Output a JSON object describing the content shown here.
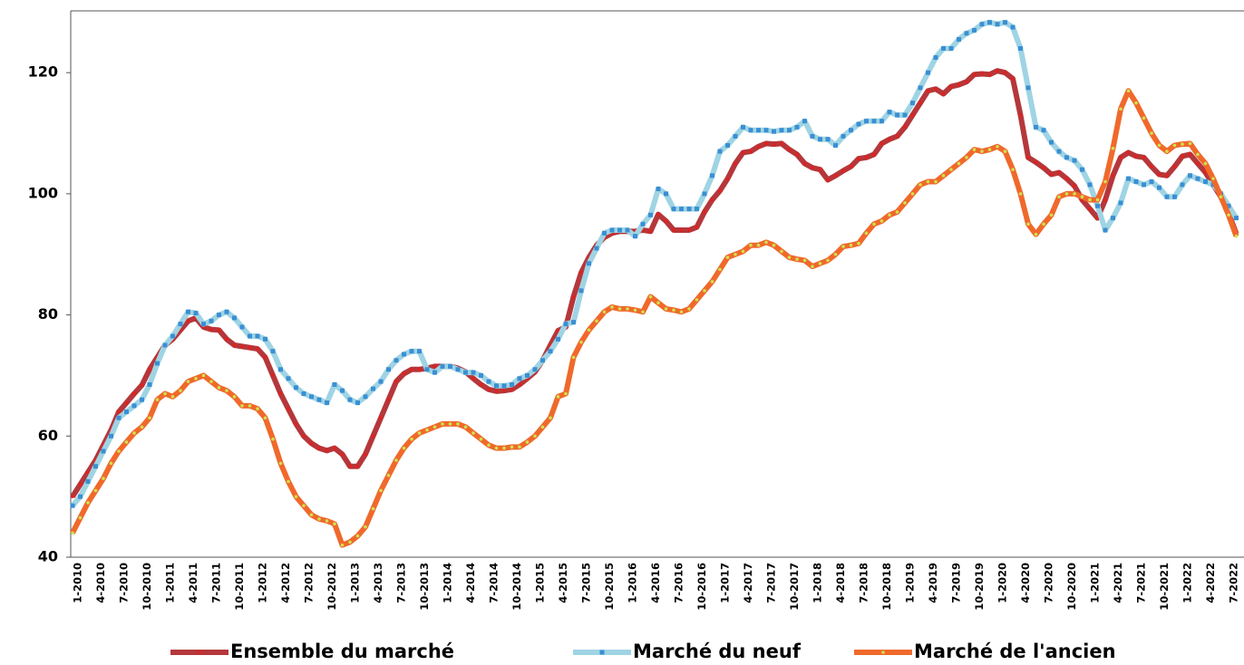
{
  "chart_data": {
    "type": "line",
    "categories": [
      "1-2010",
      null,
      null,
      "4-2010",
      null,
      null,
      "7-2010",
      null,
      null,
      "10-2010",
      null,
      null,
      "1-2011",
      null,
      null,
      "4-2011",
      null,
      null,
      "7-2011",
      null,
      null,
      "10-2011",
      null,
      null,
      "1-2012",
      null,
      null,
      "4-2012",
      null,
      null,
      "7-2012",
      null,
      null,
      "10-2012",
      null,
      null,
      "1-2013",
      null,
      null,
      "4-2013",
      null,
      null,
      "7-2013",
      null,
      null,
      "10-2013",
      null,
      null,
      "1-2014",
      null,
      null,
      "4-2014",
      null,
      null,
      "7-2014",
      null,
      null,
      "10-2014",
      null,
      null,
      "1-2015",
      null,
      null,
      "4-2015",
      null,
      null,
      "7-2015",
      null,
      null,
      "10-2015",
      null,
      null,
      "1-2016",
      null,
      null,
      "4-2016",
      null,
      null,
      "7-2016",
      null,
      null,
      "10-2016",
      null,
      null,
      "1-2017",
      null,
      null,
      "4-2017",
      null,
      null,
      "7-2017",
      null,
      null,
      "10-2017",
      null,
      null,
      "1-2018",
      null,
      null,
      "4-2018",
      null,
      null,
      "7-2018",
      null,
      null,
      "10-2018",
      null,
      null,
      "1-2019",
      null,
      null,
      "4-2019",
      null,
      null,
      "7-2019",
      null,
      null,
      "10-2019",
      null,
      null,
      "1-2020",
      null,
      null,
      "4-2020",
      null,
      null,
      "7-2020",
      null,
      null,
      "10-2020",
      null,
      null,
      "1-2021",
      null,
      null,
      "4-2021",
      null,
      null,
      "7-2021",
      null,
      null,
      "10-2021",
      null,
      null,
      "1-2022",
      null,
      null,
      "4-2022",
      null,
      null,
      "7-2022",
      null
    ],
    "series": [
      {
        "name": "Ensemble du marché",
        "color": "#b5373b",
        "marker_color": "#e3201c",
        "marker": "circle",
        "values": [
          50,
          52,
          54,
          56,
          58.5,
          61,
          64,
          65.5,
          67,
          68.4,
          71,
          73,
          75,
          76,
          77.5,
          79,
          79.5,
          78,
          77.6,
          77.5,
          76,
          75,
          74.8,
          74.6,
          74.4,
          73,
          70,
          67,
          64.5,
          62,
          60,
          58.8,
          58,
          57.6,
          58,
          57,
          55,
          55,
          57,
          60,
          63,
          66,
          69,
          70.3,
          71,
          71,
          71.2,
          71.5,
          71.5,
          71.5,
          71.2,
          70.6,
          69.5,
          68.5,
          67.7,
          67.4,
          67.5,
          67.7,
          68.5,
          69.5,
          70.6,
          72.5,
          75,
          77.4,
          78,
          83,
          87,
          89.5,
          91.5,
          92.8,
          93.5,
          93.8,
          93.8,
          93.8,
          94,
          93.8,
          96.6,
          95.5,
          94,
          94,
          94,
          94.5,
          97,
          99,
          100.5,
          102.5,
          105,
          106.8,
          107,
          107.8,
          108.3,
          108.2,
          108.3,
          107.3,
          106.5,
          105,
          104.3,
          104,
          102.3,
          103,
          103.8,
          104.5,
          105.8,
          106,
          106.5,
          108.3,
          109,
          109.5,
          111,
          113,
          115,
          117,
          117.3,
          116.5,
          117.7,
          118,
          118.5,
          119.7,
          119.8,
          119.7,
          120.3,
          120,
          119,
          113,
          106,
          105.2,
          104.3,
          103.2,
          103.5,
          102.5,
          101.3,
          99,
          97.5,
          96,
          99,
          103,
          106,
          106.8,
          106.2,
          106,
          104.5,
          103.2,
          103,
          104.5,
          106.2,
          106.5,
          105,
          103.5,
          101.5,
          99.5,
          96.8,
          93.4
        ]
      },
      {
        "name": "Marché du neuf",
        "color": "#9fd4e4",
        "marker_color": "#3a8fd3",
        "marker": "square",
        "values": [
          48.5,
          50,
          52.5,
          55,
          57.5,
          60,
          63,
          64,
          65,
          66,
          68.5,
          72,
          75,
          76.5,
          78.5,
          80.5,
          80.3,
          78.5,
          79,
          80,
          80.5,
          79.5,
          78,
          76.5,
          76.5,
          76,
          74,
          71,
          69.5,
          68,
          67,
          66.5,
          66,
          65.5,
          68.5,
          67.5,
          66,
          65.5,
          66.5,
          67.8,
          69,
          71,
          72.5,
          73.5,
          74,
          74,
          71,
          70.5,
          71.5,
          71.5,
          71,
          70.5,
          70.5,
          70,
          69,
          68.3,
          68.3,
          68.5,
          69.5,
          70,
          71,
          72.5,
          74,
          76,
          78.5,
          78.8,
          84,
          88.5,
          91,
          93.5,
          94,
          94,
          94,
          93,
          95,
          96.5,
          100.8,
          100,
          97.5,
          97.5,
          97.5,
          97.5,
          100,
          103,
          107,
          108,
          109.5,
          111,
          110.5,
          110.5,
          110.5,
          110.3,
          110.5,
          110.5,
          111,
          112,
          109.5,
          109,
          109,
          108,
          109.5,
          110.5,
          111.5,
          112,
          112,
          112,
          113.5,
          113,
          113,
          115,
          117.5,
          120,
          122.5,
          124,
          124,
          125.5,
          126.5,
          127,
          128,
          128.3,
          128,
          128.3,
          127.5,
          124,
          117.5,
          111,
          110.5,
          108.5,
          107,
          106,
          105.5,
          104,
          101.5,
          98,
          94,
          96,
          98.5,
          102.5,
          102,
          101.5,
          102,
          101,
          99.5,
          99.5,
          101.5,
          103,
          102.5,
          102,
          101.5,
          100,
          98,
          96
        ]
      },
      {
        "name": "Marché de l'ancien",
        "color": "#f0692b",
        "marker_color": "#cde24f",
        "marker": "circle",
        "values": [
          44,
          46.5,
          49,
          51,
          53,
          55.5,
          57.5,
          59,
          60.5,
          61.5,
          63,
          66,
          67,
          66.5,
          67.5,
          69,
          69.5,
          70,
          69,
          68,
          67.5,
          66.5,
          65,
          65,
          64.5,
          63,
          59.5,
          55.5,
          52.5,
          50,
          48.5,
          47,
          46.3,
          46,
          45.5,
          42,
          42.5,
          43.5,
          45,
          48,
          51,
          53.5,
          56,
          58,
          59.5,
          60.5,
          61,
          61.5,
          62,
          62,
          62,
          61.5,
          60.5,
          59.5,
          58.5,
          58,
          58,
          58.2,
          58.2,
          59,
          60,
          61.5,
          63,
          66.5,
          67,
          73,
          75.5,
          77.5,
          79,
          80.5,
          81.3,
          81,
          81,
          80.8,
          80.5,
          83,
          82,
          81,
          80.8,
          80.5,
          81,
          82.5,
          84,
          85.5,
          87.5,
          89.5,
          90,
          90.5,
          91.5,
          91.5,
          92,
          91.5,
          90.5,
          89.5,
          89.2,
          89,
          88,
          88.5,
          89,
          90,
          91.3,
          91.5,
          91.8,
          93.5,
          95,
          95.5,
          96.5,
          97,
          98.5,
          100,
          101.5,
          102,
          102,
          103,
          104,
          105,
          106,
          107.3,
          107,
          107.3,
          107.8,
          107,
          104,
          100,
          95,
          93.3,
          95,
          96.5,
          99.5,
          100,
          100,
          99.5,
          99,
          99,
          102,
          107.5,
          114,
          117,
          115,
          112.5,
          110,
          108,
          107,
          108,
          108.2,
          108.3,
          106.5,
          105,
          102.5,
          99.5,
          96.5,
          93
        ]
      }
    ],
    "ylim": [
      40,
      130.2
    ],
    "yticks": [
      40,
      60,
      80,
      100,
      120
    ],
    "grid": false,
    "legend": "bottom"
  }
}
